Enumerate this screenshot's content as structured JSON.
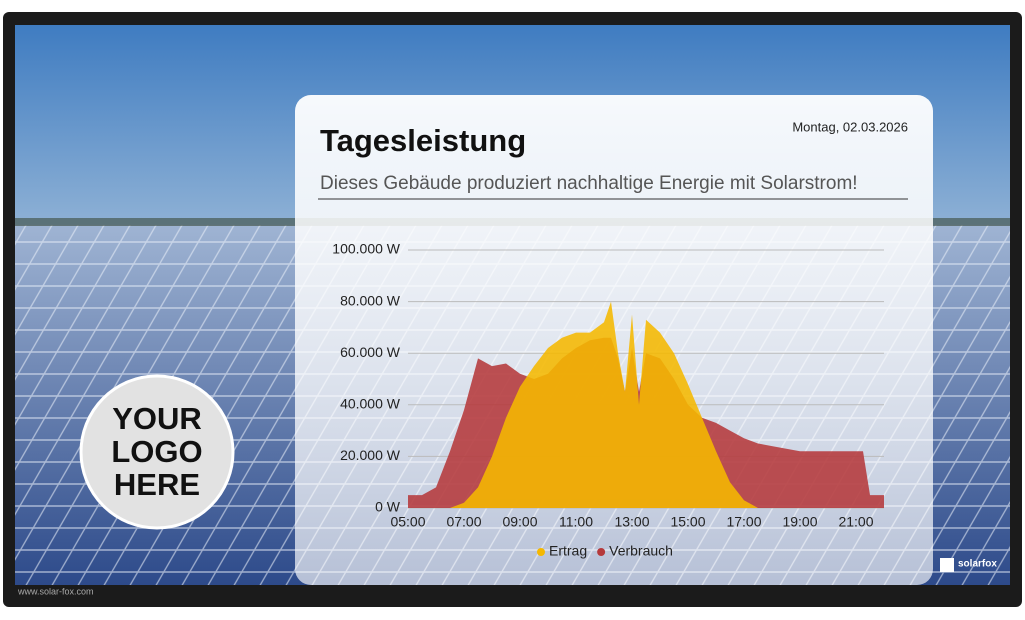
{
  "date": "Montag, 02.03.2026",
  "logo": {
    "lines": [
      "YOUR",
      "LOGO",
      "HERE"
    ]
  },
  "watermark": "www.solar-fox.com",
  "brand": "solarfox",
  "chart_data": {
    "type": "area",
    "title": "Tagesleistung",
    "subtitle": "Dieses Gebäude produziert nachhaltige Energie mit Solarstrom!",
    "x": [
      5,
      5.5,
      6,
      6.5,
      7,
      7.5,
      8,
      8.5,
      9,
      9.5,
      10,
      10.5,
      11,
      11.5,
      12,
      12.25,
      12.5,
      12.75,
      13,
      13.25,
      13.5,
      14,
      14.5,
      15,
      15.5,
      16,
      16.5,
      17,
      17.5,
      18,
      19,
      20,
      21,
      21.25,
      21.5,
      22
    ],
    "series": [
      {
        "name": "Verbrauch",
        "color": "#b5393b",
        "values": [
          5000,
          5000,
          8000,
          22000,
          38000,
          58000,
          55000,
          56000,
          52000,
          50000,
          52000,
          58000,
          62000,
          65000,
          66000,
          66000,
          58000,
          45000,
          62000,
          45000,
          60000,
          58000,
          50000,
          40000,
          35000,
          33000,
          30000,
          27000,
          25000,
          24000,
          22000,
          22000,
          22000,
          22000,
          5000,
          5000
        ]
      },
      {
        "name": "Ertrag",
        "color": "#f5b800",
        "values": [
          0,
          0,
          0,
          0,
          2000,
          8000,
          20000,
          35000,
          47000,
          55000,
          62000,
          66000,
          68000,
          68000,
          72000,
          80000,
          60000,
          45000,
          75000,
          40000,
          73000,
          68000,
          60000,
          48000,
          35000,
          22000,
          10000,
          3000,
          0,
          0,
          0,
          0,
          0,
          0,
          0,
          0
        ]
      }
    ],
    "legend_order": [
      "Ertrag",
      "Verbrauch"
    ],
    "xlim": [
      5,
      22
    ],
    "xticks": [
      {
        "value": 5,
        "label": "05:00"
      },
      {
        "value": 7,
        "label": "07:00"
      },
      {
        "value": 9,
        "label": "09:00"
      },
      {
        "value": 11,
        "label": "11:00"
      },
      {
        "value": 13,
        "label": "13:00"
      },
      {
        "value": 15,
        "label": "15:00"
      },
      {
        "value": 17,
        "label": "17:00"
      },
      {
        "value": 19,
        "label": "19:00"
      },
      {
        "value": 21,
        "label": "21:00"
      }
    ],
    "ylim": [
      0,
      100000
    ],
    "yticks": [
      {
        "value": 0,
        "label": "0 W"
      },
      {
        "value": 20000,
        "label": "20.000 W"
      },
      {
        "value": 40000,
        "label": "40.000 W"
      },
      {
        "value": 60000,
        "label": "60.000 W"
      },
      {
        "value": 80000,
        "label": "80.000 W"
      },
      {
        "value": 100000,
        "label": "100.000 W"
      }
    ],
    "grid": true,
    "legend": "bottom"
  }
}
